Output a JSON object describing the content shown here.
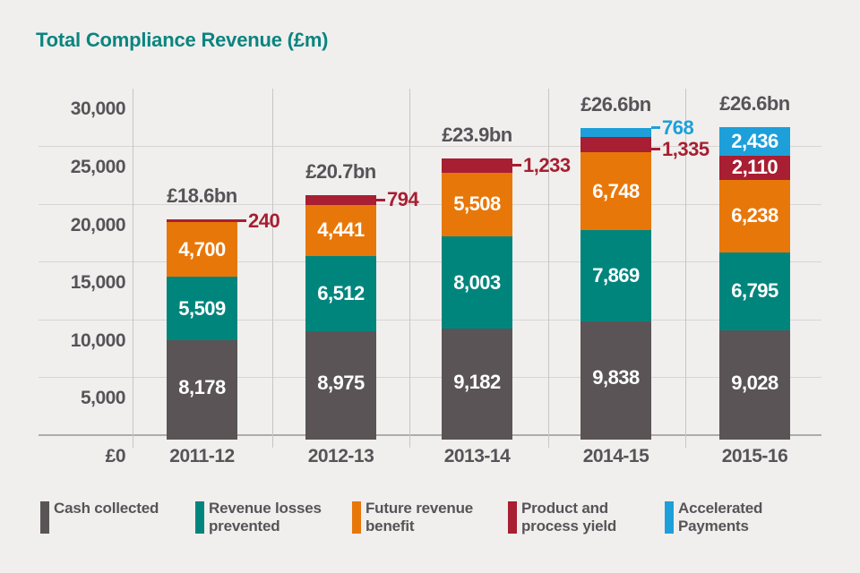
{
  "title": "Total Compliance Revenue (£m)",
  "colors": {
    "background": "#f0efed",
    "title_text": "#0b8480",
    "axis_text": "#585358",
    "grid_line": "#d7d5d3",
    "grid_line_vertical": "#c8c6c4",
    "baseline_color": "#aeacaa",
    "bar_label_text": "#ffffff"
  },
  "chart_data": {
    "type": "bar",
    "stacked": true,
    "title": "Total Compliance Revenue (£m)",
    "categories": [
      "2011-12",
      "2012-13",
      "2013-14",
      "2014-15",
      "2015-16"
    ],
    "series": [
      {
        "name": "Cash collected",
        "color": "#5a5456",
        "values": [
          8178,
          8975,
          9182,
          9838,
          9028
        ]
      },
      {
        "name": "Revenue losses prevented",
        "color": "#00857d",
        "values": [
          5509,
          6512,
          8003,
          7869,
          6795
        ]
      },
      {
        "name": "Future revenue benefit",
        "color": "#e87709",
        "values": [
          4700,
          4441,
          5508,
          6748,
          6238
        ]
      },
      {
        "name": "Product and process yield",
        "color": "#a81e32",
        "values": [
          240,
          794,
          1233,
          1335,
          2110
        ]
      },
      {
        "name": "Accelerated Payments",
        "color": "#1d9fd9",
        "values": [
          null,
          null,
          null,
          768,
          2436
        ]
      }
    ],
    "totals": [
      "£18.6bn",
      "£20.7bn",
      "£23.9bn",
      "£26.6bn",
      "£26.6bn"
    ],
    "y_ticks": [
      {
        "label": "30,000",
        "value": 30000
      },
      {
        "label": "25,000",
        "value": 25000
      },
      {
        "label": "20,000",
        "value": 20000
      },
      {
        "label": "15,000",
        "value": 15000
      },
      {
        "label": "10,000",
        "value": 10000
      },
      {
        "label": "5,000",
        "value": 5000
      },
      {
        "label": "£0",
        "value": 0
      }
    ],
    "ylim": [
      0,
      30000
    ],
    "grid": true,
    "legend_position": "bottom",
    "legend": [
      {
        "series_index": 0,
        "label_lines": [
          "Cash collected"
        ]
      },
      {
        "series_index": 1,
        "label_lines": [
          "Revenue losses",
          "prevented"
        ]
      },
      {
        "series_index": 2,
        "label_lines": [
          "Future revenue",
          "benefit"
        ]
      },
      {
        "series_index": 3,
        "label_lines": [
          "Product and",
          "process yield"
        ]
      },
      {
        "series_index": 4,
        "label_lines": [
          "Accelerated",
          "Payments"
        ]
      }
    ]
  }
}
